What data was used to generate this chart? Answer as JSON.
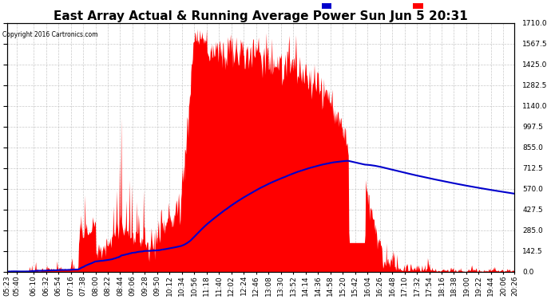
{
  "title": "East Array Actual & Running Average Power Sun Jun 5 20:31",
  "copyright": "Copyright 2016 Cartronics.com",
  "yticks": [
    0.0,
    142.5,
    285.0,
    427.5,
    570.0,
    712.5,
    855.0,
    997.5,
    1140.0,
    1282.5,
    1425.0,
    1567.5,
    1710.0
  ],
  "ymax": 1710.0,
  "ymin": 0.0,
  "fill_color": "#ff0000",
  "avg_line_color": "#0000cc",
  "background_color": "#ffffff",
  "grid_color": "#bbbbbb",
  "legend_avg_bg": "#0000cc",
  "legend_east_bg": "#ff0000",
  "title_fontsize": 11,
  "tick_label_fontsize": 6.5,
  "xtick_labels": [
    "05:23",
    "05:40",
    "06:10",
    "06:32",
    "06:54",
    "07:16",
    "07:38",
    "08:00",
    "08:22",
    "08:44",
    "09:06",
    "09:28",
    "09:50",
    "10:12",
    "10:34",
    "10:56",
    "11:18",
    "11:40",
    "12:02",
    "12:24",
    "12:46",
    "13:08",
    "13:30",
    "13:52",
    "14:14",
    "14:36",
    "14:58",
    "15:20",
    "15:42",
    "16:04",
    "16:26",
    "16:48",
    "17:10",
    "17:32",
    "17:54",
    "18:16",
    "18:38",
    "19:00",
    "19:22",
    "19:44",
    "20:06",
    "20:26"
  ]
}
